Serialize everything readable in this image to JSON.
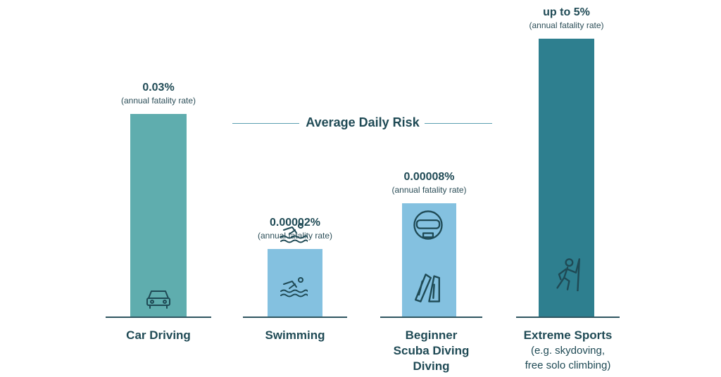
{
  "chart_data": {
    "type": "bar",
    "title": "Average Daily Risk",
    "categories": [
      "Car Driving",
      "Swimming",
      "Beginner Scuba Diving Diving",
      "Extreme Sports"
    ],
    "values_percent": [
      0.03,
      2e-05,
      8e-05,
      5
    ],
    "value_labels": [
      "0.03%",
      "0.00002%",
      "0.00008%",
      "up to 5%"
    ],
    "value_sublabel": "(annual fatality rate)",
    "category_lines": [
      [
        "Car Driving"
      ],
      [
        "Swimming"
      ],
      [
        "Beginner",
        "Scuba Diving",
        "Diving"
      ],
      [
        "Extreme Sports"
      ]
    ],
    "category_notes": [
      [],
      [],
      [],
      [
        "(e.g. skydoving,",
        "free solo climbing)"
      ]
    ],
    "colors": [
      "#5fadae",
      "#84c1e0",
      "#84c1e0",
      "#2e7f8f"
    ],
    "icons": [
      "car-icon",
      "swimmer-icon",
      "scuba-mask-icon",
      "climber-icon"
    ],
    "grid": false,
    "axes_visible": false
  }
}
